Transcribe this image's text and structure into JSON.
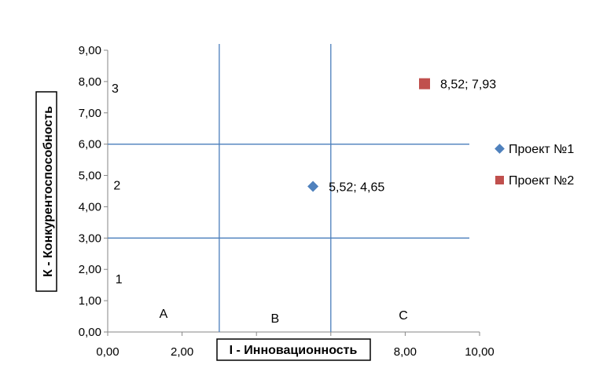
{
  "chart_data": {
    "type": "scatter",
    "title": "",
    "xlabel": "I - Инновационность",
    "ylabel": "К - Конкурентоспособность",
    "xlim": [
      0,
      10
    ],
    "ylim": [
      0,
      9
    ],
    "x_ticks": [
      "0,00",
      "2,00",
      "4,00",
      "6,00",
      "8,00",
      "10,00"
    ],
    "y_ticks": [
      "0,00",
      "1,00",
      "2,00",
      "3,00",
      "4,00",
      "5,00",
      "6,00",
      "7,00",
      "8,00",
      "9,00"
    ],
    "grid": false,
    "legend": "right",
    "series": [
      {
        "name": "Проект №1",
        "x": [
          5.52
        ],
        "y": [
          4.65
        ],
        "marker": "diamond",
        "color": "#4F81BD",
        "labels": [
          "5,52; 4,65"
        ]
      },
      {
        "name": "Проект №2",
        "x": [
          8.52
        ],
        "y": [
          7.93
        ],
        "marker": "square",
        "color": "#C0504D",
        "labels": [
          "8,52; 7,93"
        ]
      }
    ],
    "reference_lines": {
      "vertical": [
        3,
        6
      ],
      "horizontal": [
        3,
        6
      ],
      "color": "#4A7EBB"
    },
    "zone_labels": [
      {
        "text": "A",
        "x": 1.5,
        "y": 0.6
      },
      {
        "text": "B",
        "x": 4.5,
        "y": 0.45
      },
      {
        "text": "C",
        "x": 7.95,
        "y": 0.55
      },
      {
        "text": "1",
        "x": 0.3,
        "y": 1.7
      },
      {
        "text": "2",
        "x": 0.25,
        "y": 4.7
      },
      {
        "text": "3",
        "x": 0.2,
        "y": 7.8
      }
    ]
  }
}
